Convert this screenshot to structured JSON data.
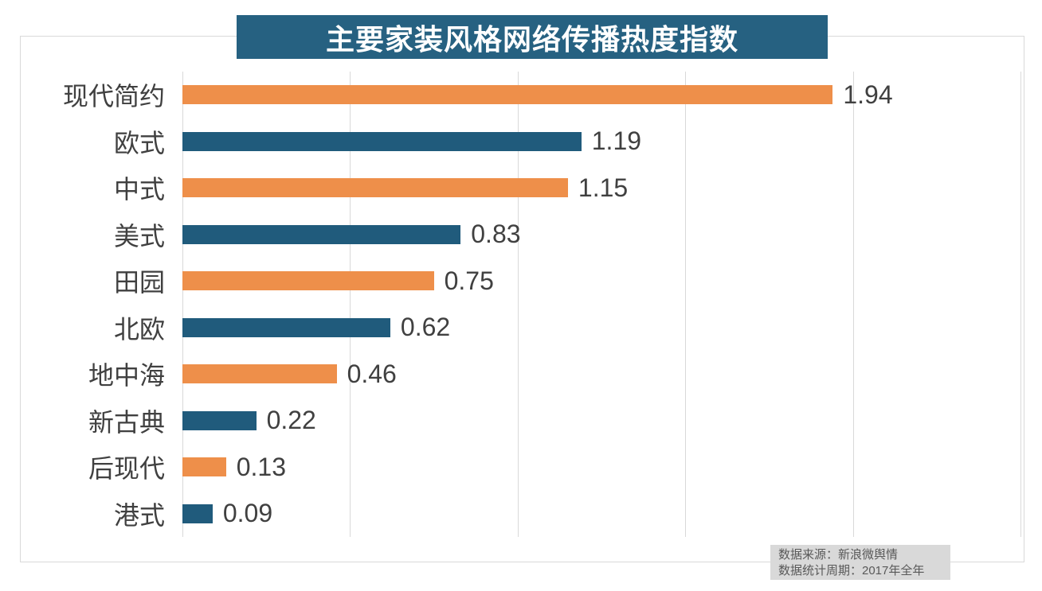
{
  "chart_data": {
    "type": "bar",
    "orientation": "horizontal",
    "title": "主要家装风格网络传播热度指数",
    "categories": [
      "现代简约",
      "欧式",
      "中式",
      "美式",
      "田园",
      "北欧",
      "地中海",
      "新古典",
      "后现代",
      "港式"
    ],
    "values": [
      1.94,
      1.19,
      1.15,
      0.83,
      0.75,
      0.62,
      0.46,
      0.22,
      0.13,
      0.09
    ],
    "value_labels": [
      "1.94",
      "1.19",
      "1.15",
      "0.83",
      "0.75",
      "0.62",
      "0.46",
      "0.22",
      "0.13",
      "0.09"
    ],
    "xlabel": "",
    "ylabel": "",
    "xlim": [
      0,
      2.5
    ],
    "xticks": [
      0,
      0.5,
      1.0,
      1.5,
      2.0,
      2.5
    ],
    "grid": true,
    "legend": "none",
    "bar_color_pattern": "alternating"
  },
  "source_box": {
    "line1": "数据来源：新浪微舆情",
    "line2": "数据统计周期：2017年全年"
  },
  "colors": {
    "background": "#FFFFFF",
    "bar_orange": "#EE8F4A",
    "bar_teal": "#205B7C",
    "title_bg": "#266181",
    "title_text": "#FFFFFF",
    "grid": "#D9D9D9",
    "border": "#D9D9D9",
    "axis_text": "#404040",
    "source_bg": "#D9D9D9",
    "source_text": "#595959"
  }
}
